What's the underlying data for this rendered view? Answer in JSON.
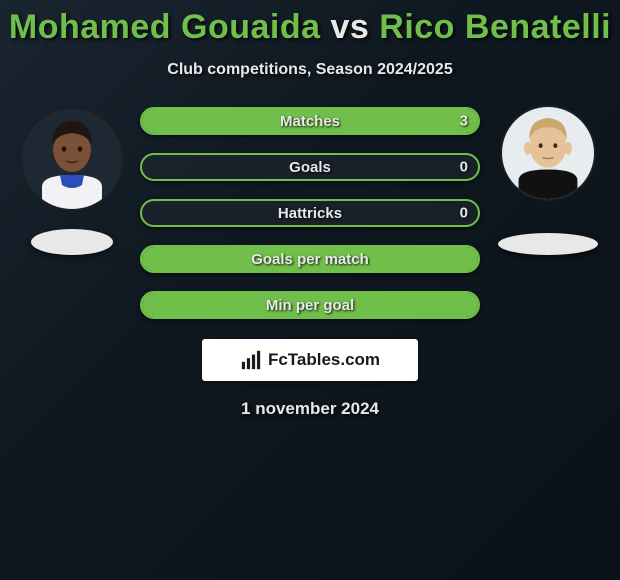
{
  "title": {
    "player1": "Mohamed Gouaida",
    "vs": "vs",
    "player2": "Rico Benatelli",
    "player1_color": "#6fbf4a",
    "vs_color": "#e8e8e8",
    "player2_color": "#6fbf4a"
  },
  "subtitle": "Club competitions, Season 2024/2025",
  "avatar_left": {
    "bg": "#1e2832",
    "skin": "#7a5038",
    "hair": "#201510",
    "shirt": "#f2f2f5",
    "collar": "#2a4fbb"
  },
  "avatar_right": {
    "bg": "#e8ecef",
    "skin": "#e6c29a",
    "hair": "#c9a86e",
    "shirt": "#111111"
  },
  "bars": {
    "border_color": "#6fbf4a",
    "fill_color": "#6fbf4a",
    "track_color": "rgba(30,40,48,0.6)",
    "text_color": "#e8e8e8",
    "rows": [
      {
        "label": "Matches",
        "left_val": "",
        "right_val": "3",
        "left_pct": 0,
        "right_pct": 100,
        "show_left": false,
        "show_right": true
      },
      {
        "label": "Goals",
        "left_val": "",
        "right_val": "0",
        "left_pct": 0,
        "right_pct": 0,
        "show_left": false,
        "show_right": true
      },
      {
        "label": "Hattricks",
        "left_val": "",
        "right_val": "0",
        "left_pct": 0,
        "right_pct": 0,
        "show_left": false,
        "show_right": true
      },
      {
        "label": "Goals per match",
        "left_val": "",
        "right_val": "",
        "left_pct": 50,
        "right_pct": 50,
        "show_left": false,
        "show_right": false
      },
      {
        "label": "Min per goal",
        "left_val": "",
        "right_val": "",
        "left_pct": 50,
        "right_pct": 50,
        "show_left": false,
        "show_right": false
      }
    ]
  },
  "logo": {
    "text_fc": "Fc",
    "text_rest": "Tables.com"
  },
  "date": "1 november 2024",
  "colors": {
    "background_from": "#1a2530",
    "background_to": "#0a1218",
    "accent": "#6fbf4a",
    "text": "#e8e8e8"
  }
}
